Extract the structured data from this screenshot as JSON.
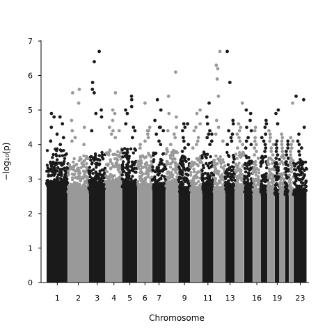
{
  "chart_data": {
    "type": "scatter",
    "subtype": "manhattan",
    "title": "",
    "xlabel": "Chromosome",
    "ylabel": "−log₁₀(p)",
    "ylim": [
      0,
      7
    ],
    "yticks": [
      0,
      1,
      2,
      3,
      4,
      5,
      6,
      7
    ],
    "xtick_labels": [
      "1",
      "2",
      "3",
      "4",
      "5",
      "6",
      "7",
      "9",
      "11",
      "13",
      "16",
      "19",
      "23"
    ],
    "colors": {
      "odd": "#1a1a1a",
      "even": "#999999"
    },
    "grid": false,
    "legend": "none",
    "chromosomes": [
      {
        "chr": "1",
        "base_max": 3.7,
        "peaks": [
          4.9,
          4.8,
          4.6,
          4.5,
          4.3,
          4.2,
          4.1,
          4.0,
          4.8
        ]
      },
      {
        "chr": "2",
        "base_max": 3.5,
        "peaks": [
          5.6,
          5.5,
          5.2,
          4.7,
          4.5,
          4.4,
          4.2,
          4.1,
          4.0
        ]
      },
      {
        "chr": "3",
        "base_max": 3.6,
        "peaks": [
          6.7,
          6.4,
          5.8,
          5.6,
          5.5,
          5.0,
          4.9,
          4.8,
          4.4
        ]
      },
      {
        "chr": "4",
        "base_max": 3.7,
        "peaks": [
          5.5,
          5.0,
          4.9,
          4.7,
          4.5,
          4.4,
          4.3,
          4.2,
          4.4
        ]
      },
      {
        "chr": "5",
        "base_max": 3.7,
        "peaks": [
          5.4,
          5.3,
          5.1,
          5.0,
          4.9,
          4.6,
          4.5,
          4.4,
          4.2
        ]
      },
      {
        "chr": "6",
        "base_max": 3.6,
        "peaks": [
          5.2,
          4.5,
          4.4,
          4.3,
          4.2,
          4.1,
          4.0,
          3.9,
          4.4
        ]
      },
      {
        "chr": "7",
        "base_max": 3.6,
        "peaks": [
          5.3,
          5.0,
          4.7,
          4.5,
          4.4,
          4.3,
          4.1,
          4.0,
          4.5
        ]
      },
      {
        "chr": "8",
        "base_max": 3.7,
        "peaks": [
          6.1,
          5.4,
          4.9,
          4.8,
          4.5,
          4.4,
          4.3,
          4.2,
          4.0
        ]
      },
      {
        "chr": "9",
        "base_max": 3.5,
        "peaks": [
          4.6,
          4.4,
          4.2,
          4.1,
          4.0,
          3.9,
          3.8,
          4.6,
          4.5
        ]
      },
      {
        "chr": "10",
        "base_max": 3.5,
        "peaks": [
          5.0,
          4.9,
          4.6,
          4.4,
          4.2,
          4.1,
          4.0,
          3.9,
          4.5
        ]
      },
      {
        "chr": "11",
        "base_max": 3.6,
        "peaks": [
          5.2,
          4.8,
          4.6,
          4.4,
          4.3,
          4.1,
          4.0,
          4.2,
          4.3
        ]
      },
      {
        "chr": "12",
        "base_max": 3.5,
        "peaks": [
          6.7,
          6.3,
          6.2,
          5.9,
          5.4,
          4.7,
          4.5,
          4.3,
          4.1
        ]
      },
      {
        "chr": "13",
        "base_max": 3.6,
        "peaks": [
          6.7,
          5.8,
          4.7,
          4.6,
          4.4,
          4.3,
          4.2,
          4.1,
          4.0
        ]
      },
      {
        "chr": "14",
        "base_max": 3.6,
        "peaks": [
          5.2,
          4.6,
          4.5,
          4.4,
          4.3,
          4.2,
          4.1,
          4.0,
          3.9
        ]
      },
      {
        "chr": "15",
        "base_max": 3.5,
        "peaks": [
          5.0,
          4.9,
          4.7,
          4.5,
          4.4,
          4.2,
          4.1,
          4.0,
          3.9
        ]
      },
      {
        "chr": "16",
        "base_max": 3.4,
        "peaks": [
          4.5,
          4.4,
          4.2,
          4.1,
          4.0,
          3.9,
          3.8,
          3.7,
          3.6
        ]
      },
      {
        "chr": "17",
        "base_max": 3.5,
        "peaks": [
          4.7,
          4.6,
          4.5,
          4.3,
          4.2,
          4.1,
          4.0,
          3.9,
          3.8
        ]
      },
      {
        "chr": "18",
        "base_max": 3.5,
        "peaks": [
          4.4,
          4.3,
          4.2,
          4.1,
          4.0,
          3.9,
          3.8,
          3.7,
          3.6
        ]
      },
      {
        "chr": "19",
        "base_max": 3.4,
        "peaks": [
          5.0,
          4.9,
          4.6,
          4.1,
          4.0,
          3.9,
          3.8,
          3.7,
          3.6
        ]
      },
      {
        "chr": "20",
        "base_max": 3.5,
        "peaks": [
          4.3,
          4.2,
          4.1,
          4.0,
          3.9,
          3.8,
          3.7,
          3.6,
          3.5
        ]
      },
      {
        "chr": "21",
        "base_max": 3.4,
        "peaks": [
          4.1,
          4.0,
          3.9,
          3.8,
          3.7,
          3.6,
          3.5,
          3.4,
          3.3
        ]
      },
      {
        "chr": "22",
        "base_max": 3.4,
        "peaks": [
          5.2,
          4.2,
          4.1,
          4.0,
          3.9,
          3.8,
          3.7,
          3.6,
          3.5
        ]
      },
      {
        "chr": "23",
        "base_max": 3.4,
        "peaks": [
          5.4,
          5.3,
          4.5,
          4.3,
          4.1,
          4.0,
          3.9,
          3.8,
          3.7
        ]
      }
    ]
  }
}
